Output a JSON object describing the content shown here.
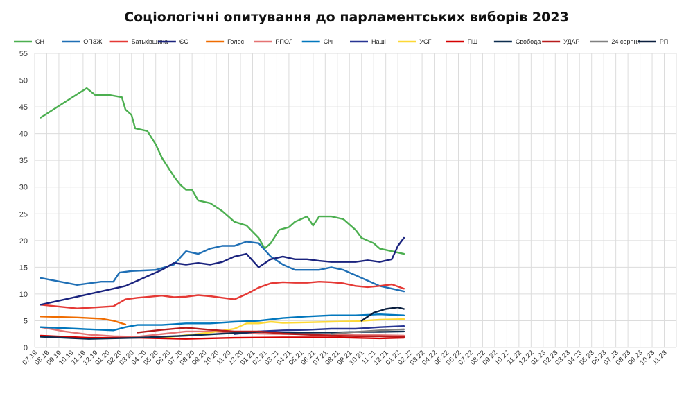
{
  "chart_data": {
    "type": "line",
    "title": "Соціологічні опитування до парламентських виборів 2023",
    "xlabel": "",
    "ylabel": "",
    "ylim": [
      0,
      55
    ],
    "y_ticks": [
      0,
      5,
      10,
      15,
      20,
      25,
      30,
      35,
      40,
      45,
      50,
      55
    ],
    "x_ticks": [
      "07.19",
      "08.19",
      "09.19",
      "10.19",
      "11.19",
      "12.19",
      "01.20",
      "02.20",
      "03.20",
      "04.20",
      "05.20",
      "06.20",
      "07.20",
      "08.20",
      "09.20",
      "10.20",
      "11.20",
      "12.20",
      "01.21",
      "02.21",
      "03.21",
      "04.21",
      "05.21",
      "06.21",
      "07.21",
      "08.21",
      "09.21",
      "10.21",
      "11.21",
      "12.21",
      "01.22",
      "02.22",
      "03.22",
      "04.22",
      "05.22",
      "06.22",
      "07.22",
      "08.22",
      "09.22",
      "10.22",
      "11.22",
      "12.22",
      "01.23",
      "02.23",
      "03.23",
      "04.23",
      "05.23",
      "06.23",
      "07.23",
      "08.23",
      "09.23",
      "10.23",
      "11.23"
    ],
    "grid": true,
    "legend_position": "top",
    "series": [
      {
        "name": "СН",
        "color": "#4caf50",
        "values": [
          [
            0.5,
            43
          ],
          [
            4.3,
            48.5
          ],
          [
            5,
            47.2
          ],
          [
            6.2,
            47.2
          ],
          [
            7.2,
            46.8
          ],
          [
            7.5,
            44.5
          ],
          [
            8,
            43.5
          ],
          [
            8.3,
            41
          ],
          [
            9.3,
            40.5
          ],
          [
            10,
            38
          ],
          [
            10.5,
            35.5
          ],
          [
            11.5,
            32
          ],
          [
            12,
            30.5
          ],
          [
            12.5,
            29.5
          ],
          [
            13,
            29.5
          ],
          [
            13.5,
            27.5
          ],
          [
            14.5,
            27
          ],
          [
            15.5,
            25.5
          ],
          [
            16.5,
            23.5
          ],
          [
            17.5,
            22.8
          ],
          [
            18.5,
            20.5
          ],
          [
            19,
            18.5
          ],
          [
            19.5,
            19.5
          ],
          [
            20.2,
            22
          ],
          [
            21,
            22.5
          ],
          [
            21.5,
            23.5
          ],
          [
            22.5,
            24.5
          ],
          [
            23,
            22.8
          ],
          [
            23.5,
            24.5
          ],
          [
            24.5,
            24.5
          ],
          [
            25.5,
            24
          ],
          [
            26.5,
            22
          ],
          [
            27,
            20.5
          ],
          [
            28,
            19.5
          ],
          [
            28.5,
            18.5
          ],
          [
            29.5,
            18
          ],
          [
            30.5,
            17.5
          ]
        ]
      },
      {
        "name": "ОПЗЖ",
        "color": "#1f6fb5",
        "values": [
          [
            0.5,
            13
          ],
          [
            3.5,
            11.7
          ],
          [
            5.5,
            12.3
          ],
          [
            6.5,
            12.3
          ],
          [
            7,
            14
          ],
          [
            8,
            14.3
          ],
          [
            9,
            14.4
          ],
          [
            10,
            14.5
          ],
          [
            11.5,
            15.5
          ],
          [
            12.5,
            18
          ],
          [
            13.5,
            17.5
          ],
          [
            14.5,
            18.5
          ],
          [
            15.5,
            19
          ],
          [
            16.5,
            19
          ],
          [
            17.5,
            19.8
          ],
          [
            18.5,
            19.5
          ],
          [
            19.5,
            17
          ],
          [
            20.5,
            15.5
          ],
          [
            21.5,
            14.5
          ],
          [
            22.5,
            14.5
          ],
          [
            23.5,
            14.5
          ],
          [
            24.5,
            15
          ],
          [
            25.5,
            14.5
          ],
          [
            26.5,
            13.5
          ],
          [
            27.5,
            12.5
          ],
          [
            28.5,
            11.5
          ],
          [
            29.5,
            11
          ],
          [
            30.5,
            10.5
          ]
        ]
      },
      {
        "name": "Батьківщина",
        "color": "#e53935",
        "values": [
          [
            0.5,
            8
          ],
          [
            3.5,
            7.3
          ],
          [
            6.5,
            7.7
          ],
          [
            7.5,
            9
          ],
          [
            8.5,
            9.3
          ],
          [
            9.5,
            9.5
          ],
          [
            10.5,
            9.7
          ],
          [
            11.5,
            9.4
          ],
          [
            12.5,
            9.5
          ],
          [
            13.5,
            9.8
          ],
          [
            14.5,
            9.6
          ],
          [
            15.5,
            9.3
          ],
          [
            16.5,
            9
          ],
          [
            17.5,
            10
          ],
          [
            18.5,
            11.2
          ],
          [
            19.5,
            12
          ],
          [
            20.5,
            12.2
          ],
          [
            21.5,
            12.1
          ],
          [
            22.5,
            12.1
          ],
          [
            23.5,
            12.3
          ],
          [
            24.5,
            12.2
          ],
          [
            25.5,
            12
          ],
          [
            26.5,
            11.5
          ],
          [
            27.5,
            11.3
          ],
          [
            28.5,
            11.5
          ],
          [
            29.5,
            11.8
          ],
          [
            30.5,
            11
          ]
        ]
      },
      {
        "name": "ЄС",
        "color": "#1a237e",
        "values": [
          [
            0.5,
            8
          ],
          [
            3.5,
            9.5
          ],
          [
            5.5,
            10.5
          ],
          [
            6.5,
            11
          ],
          [
            7.5,
            11.5
          ],
          [
            8.5,
            12.5
          ],
          [
            9.5,
            13.5
          ],
          [
            10.5,
            14.5
          ],
          [
            11.5,
            15.8
          ],
          [
            12.5,
            15.5
          ],
          [
            13.5,
            15.8
          ],
          [
            14.5,
            15.5
          ],
          [
            15.5,
            16
          ],
          [
            16.5,
            17
          ],
          [
            17.5,
            17.5
          ],
          [
            18.5,
            15
          ],
          [
            19.5,
            16.5
          ],
          [
            20.5,
            17
          ],
          [
            21.5,
            16.5
          ],
          [
            22.5,
            16.5
          ],
          [
            23.5,
            16.2
          ],
          [
            24.5,
            16
          ],
          [
            25.5,
            16
          ],
          [
            26.5,
            16
          ],
          [
            27.5,
            16.3
          ],
          [
            28.5,
            16
          ],
          [
            29.5,
            16.5
          ],
          [
            30,
            19
          ],
          [
            30.5,
            20.5
          ]
        ]
      },
      {
        "name": "Голос",
        "color": "#ef6c00",
        "values": [
          [
            0.5,
            5.8
          ],
          [
            3.5,
            5.6
          ],
          [
            5.5,
            5.4
          ],
          [
            6.5,
            5
          ],
          [
            7.5,
            4.3
          ]
        ]
      },
      {
        "name": "РПОЛ",
        "color": "#e57373",
        "values": [
          [
            0.5,
            3.8
          ],
          [
            2.5,
            3
          ],
          [
            4.5,
            2.4
          ],
          [
            6.5,
            2.1
          ],
          [
            8.5,
            2
          ],
          [
            10.5,
            2.5
          ],
          [
            12.5,
            3
          ],
          [
            14.5,
            3
          ],
          [
            16.5,
            2.8
          ],
          [
            18.5,
            2.6
          ],
          [
            20.5,
            2.5
          ],
          [
            22.5,
            2.5
          ],
          [
            24.5,
            2.4
          ],
          [
            26.5,
            2.3
          ],
          [
            28.5,
            2.3
          ],
          [
            30.5,
            2.2
          ]
        ]
      },
      {
        "name": "Січ",
        "color": "#0277bd",
        "values": [
          [
            0.5,
            3.8
          ],
          [
            3.5,
            3.5
          ],
          [
            5.5,
            3.3
          ],
          [
            6.5,
            3.2
          ],
          [
            7.5,
            3.8
          ],
          [
            8.5,
            4.2
          ],
          [
            10.5,
            4.2
          ],
          [
            12.5,
            4.5
          ],
          [
            14.5,
            4.5
          ],
          [
            16.5,
            4.8
          ],
          [
            18.5,
            5
          ],
          [
            20.5,
            5.5
          ],
          [
            22.5,
            5.8
          ],
          [
            24.5,
            6
          ],
          [
            26.5,
            6
          ],
          [
            28.5,
            6.2
          ],
          [
            30.5,
            6
          ]
        ]
      },
      {
        "name": "Наші",
        "color": "#283593",
        "values": [
          [
            16.5,
            2.5
          ],
          [
            18.5,
            3
          ],
          [
            20.5,
            3.2
          ],
          [
            22.5,
            3.3
          ],
          [
            24.5,
            3.5
          ],
          [
            26.5,
            3.5
          ],
          [
            28.5,
            3.8
          ],
          [
            30.5,
            4
          ]
        ]
      },
      {
        "name": "УСГ",
        "color": "#fdd835",
        "values": [
          [
            10.5,
            1.8
          ],
          [
            12.5,
            2.3
          ],
          [
            14.5,
            2.8
          ],
          [
            16.5,
            3.5
          ],
          [
            17.5,
            4.5
          ],
          [
            18.5,
            4.5
          ],
          [
            19.5,
            4.8
          ],
          [
            20.5,
            4.6
          ],
          [
            22.5,
            4.7
          ],
          [
            24.5,
            4.8
          ],
          [
            26.5,
            4.9
          ],
          [
            28.5,
            5.2
          ],
          [
            30.5,
            5.3
          ]
        ]
      },
      {
        "name": "ПШ",
        "color": "#d50000",
        "values": [
          [
            0.5,
            2.2
          ],
          [
            4.5,
            1.8
          ],
          [
            8.5,
            1.8
          ],
          [
            12.5,
            1.6
          ],
          [
            16.5,
            1.8
          ],
          [
            20.5,
            1.9
          ],
          [
            24.5,
            1.9
          ],
          [
            28.5,
            1.7
          ],
          [
            30.5,
            1.8
          ]
        ]
      },
      {
        "name": "Свобода",
        "color": "#0d2d4f",
        "values": [
          [
            0.5,
            2
          ],
          [
            4.5,
            1.6
          ],
          [
            8.5,
            1.8
          ],
          [
            12.5,
            2.2
          ],
          [
            16.5,
            2.7
          ],
          [
            18.5,
            2.9
          ],
          [
            20.5,
            2.8
          ],
          [
            22.5,
            2.8
          ],
          [
            24.5,
            2.8
          ],
          [
            26.5,
            2.9
          ],
          [
            28.5,
            2.9
          ],
          [
            30.5,
            3
          ]
        ]
      },
      {
        "name": "УДАР",
        "color": "#b71c1c",
        "values": [
          [
            8.5,
            2.8
          ],
          [
            10.5,
            3.3
          ],
          [
            12.5,
            3.7
          ],
          [
            14.5,
            3.3
          ],
          [
            16.5,
            3
          ],
          [
            18.5,
            3
          ],
          [
            20.5,
            2.6
          ],
          [
            22.5,
            2.4
          ],
          [
            24.5,
            2.2
          ],
          [
            26.5,
            2.1
          ],
          [
            28.5,
            2.1
          ],
          [
            30.5,
            2
          ]
        ]
      },
      {
        "name": "24 серпня",
        "color": "#808080",
        "values": [
          [
            24.5,
            2.5
          ],
          [
            26.5,
            2.9
          ],
          [
            28.5,
            3.2
          ],
          [
            30.5,
            3.4
          ]
        ]
      },
      {
        "name": "РП",
        "color": "#0a1f3f",
        "values": [
          [
            27,
            5
          ],
          [
            28,
            6.5
          ],
          [
            29,
            7.2
          ],
          [
            30,
            7.5
          ],
          [
            30.5,
            7.2
          ]
        ]
      }
    ]
  }
}
